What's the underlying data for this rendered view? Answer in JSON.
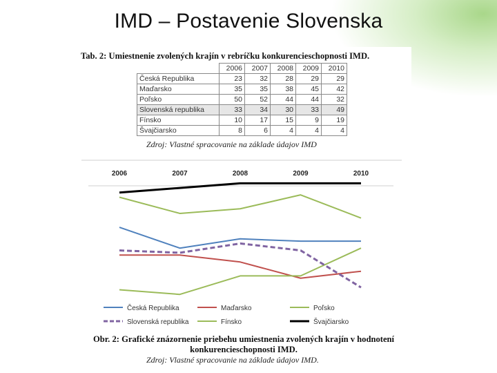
{
  "slide": {
    "title": "IMD – Postavenie Slovenska",
    "accent_color": "#a9d78a"
  },
  "table": {
    "caption": "Tab. 2: Umiestnenie zvolených krajín v rebríčku konkurencieschopnosti IMD.",
    "years": [
      "2006",
      "2007",
      "2008",
      "2009",
      "2010"
    ],
    "rows": [
      {
        "country": "Česká Republika",
        "values": [
          "23",
          "32",
          "28",
          "29",
          "29"
        ]
      },
      {
        "country": "Maďarsko",
        "values": [
          "35",
          "35",
          "38",
          "45",
          "42"
        ]
      },
      {
        "country": "Poľsko",
        "values": [
          "50",
          "52",
          "44",
          "44",
          "32"
        ]
      },
      {
        "country": "Slovenská republika",
        "values": [
          "33",
          "34",
          "30",
          "33",
          "49"
        ],
        "highlight": true
      },
      {
        "country": "Fínsko",
        "values": [
          "10",
          "17",
          "15",
          "9",
          "19"
        ]
      },
      {
        "country": "Švajčiarsko",
        "values": [
          "8",
          "6",
          "4",
          "4",
          "4"
        ]
      }
    ],
    "source": "Zdroj: Vlastné spracovanie na základe údajov IMD"
  },
  "chart_data": {
    "type": "line",
    "x": [
      "2006",
      "2007",
      "2008",
      "2009",
      "2010"
    ],
    "ylim": [
      0,
      60
    ],
    "y_inverted": true,
    "legend_position": "bottom",
    "series": [
      {
        "name": "Česká Republika",
        "values": [
          23,
          32,
          28,
          29,
          29
        ],
        "color": "#4f81bd",
        "dash": false
      },
      {
        "name": "Maďarsko",
        "values": [
          35,
          35,
          38,
          45,
          42
        ],
        "color": "#c0504d",
        "dash": false
      },
      {
        "name": "Poľsko",
        "values": [
          50,
          52,
          44,
          44,
          32
        ],
        "color": "#9bbb59",
        "dash": false
      },
      {
        "name": "Slovenská republika",
        "values": [
          33,
          34,
          30,
          33,
          49
        ],
        "color": "#8064a2",
        "dash": true
      },
      {
        "name": "Fínsko",
        "values": [
          10,
          17,
          15,
          9,
          19
        ],
        "color": "#9bbb59",
        "dash": false
      },
      {
        "name": "Švajčiarsko",
        "values": [
          8,
          6,
          4,
          4,
          4
        ],
        "color": "#000000",
        "dash": false
      }
    ]
  },
  "figure": {
    "caption_line1": "Obr. 2: Grafické znázornenie priebehu umiestnenia zvolených krajín v hodnotení",
    "caption_line2": "konkurencieschopnosti IMD.",
    "source": "Zdroj: Vlastné spracovanie na základe údajov IMD."
  }
}
